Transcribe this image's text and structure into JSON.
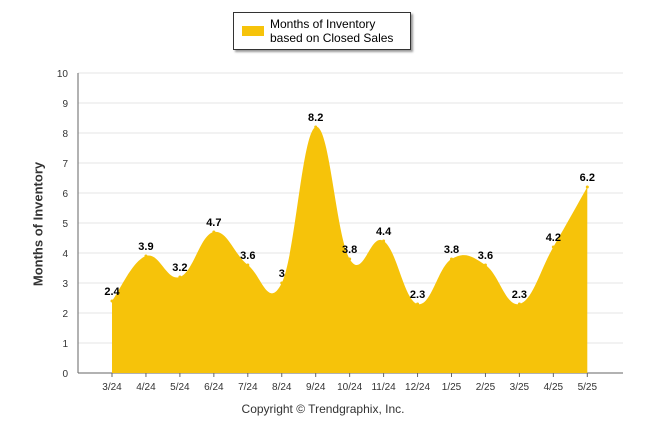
{
  "legend": {
    "label": "Months of Inventory based on Closed Sales"
  },
  "footer": {
    "copyright": "Copyright © Trendgraphix, Inc."
  },
  "colors": {
    "fill": "#F6C30A",
    "grid": "#e6e6e6",
    "axis": "#666666"
  },
  "chart_data": {
    "type": "area",
    "title": "",
    "xlabel": "",
    "ylabel": "Months of Inventory",
    "ylim": [
      0,
      10
    ],
    "yticks": [
      0,
      1,
      2,
      3,
      4,
      5,
      6,
      7,
      8,
      9,
      10
    ],
    "grid": true,
    "legend_position": "top-center",
    "categories": [
      "3/24",
      "4/24",
      "5/24",
      "6/24",
      "7/24",
      "8/24",
      "9/24",
      "10/24",
      "11/24",
      "12/24",
      "1/25",
      "2/25",
      "3/25",
      "4/25",
      "5/25"
    ],
    "series": [
      {
        "name": "Months of Inventory based on Closed Sales",
        "values": [
          2.4,
          3.9,
          3.2,
          4.7,
          3.6,
          3,
          8.2,
          3.8,
          4.4,
          2.3,
          3.8,
          3.6,
          2.3,
          4.2,
          6.2
        ],
        "labels": [
          "2.4",
          "3.9",
          "3.2",
          "4.7",
          "3.6",
          "3",
          "8.2",
          "3.8",
          "4.4",
          "2.3",
          "3.8",
          "3.6",
          "2.3",
          "4.2",
          "6.2"
        ]
      }
    ]
  }
}
